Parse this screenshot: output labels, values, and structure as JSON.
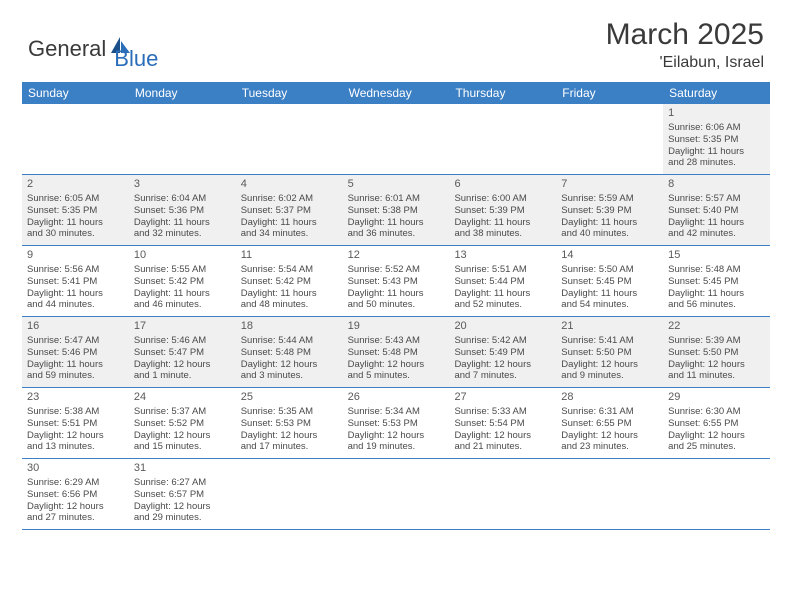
{
  "logo": {
    "text1": "General",
    "text2": "Blue"
  },
  "title": "March 2025",
  "location": "'Eilabun, Israel",
  "colors": {
    "header_bg": "#3b7fc4",
    "header_text": "#ffffff",
    "shaded_bg": "#f0f0f0",
    "border": "#3b7fc4",
    "logo_blue": "#2a6db8",
    "text_gray": "#4a4a4a"
  },
  "weekdays": [
    "Sunday",
    "Monday",
    "Tuesday",
    "Wednesday",
    "Thursday",
    "Friday",
    "Saturday"
  ],
  "weeks": [
    [
      {
        "num": "",
        "lines": []
      },
      {
        "num": "",
        "lines": []
      },
      {
        "num": "",
        "lines": []
      },
      {
        "num": "",
        "lines": []
      },
      {
        "num": "",
        "lines": []
      },
      {
        "num": "",
        "lines": []
      },
      {
        "num": "1",
        "shaded": true,
        "lines": [
          "Sunrise: 6:06 AM",
          "Sunset: 5:35 PM",
          "Daylight: 11 hours",
          "and 28 minutes."
        ]
      }
    ],
    [
      {
        "num": "2",
        "shaded": true,
        "lines": [
          "Sunrise: 6:05 AM",
          "Sunset: 5:35 PM",
          "Daylight: 11 hours",
          "and 30 minutes."
        ]
      },
      {
        "num": "3",
        "shaded": true,
        "lines": [
          "Sunrise: 6:04 AM",
          "Sunset: 5:36 PM",
          "Daylight: 11 hours",
          "and 32 minutes."
        ]
      },
      {
        "num": "4",
        "shaded": true,
        "lines": [
          "Sunrise: 6:02 AM",
          "Sunset: 5:37 PM",
          "Daylight: 11 hours",
          "and 34 minutes."
        ]
      },
      {
        "num": "5",
        "shaded": true,
        "lines": [
          "Sunrise: 6:01 AM",
          "Sunset: 5:38 PM",
          "Daylight: 11 hours",
          "and 36 minutes."
        ]
      },
      {
        "num": "6",
        "shaded": true,
        "lines": [
          "Sunrise: 6:00 AM",
          "Sunset: 5:39 PM",
          "Daylight: 11 hours",
          "and 38 minutes."
        ]
      },
      {
        "num": "7",
        "shaded": true,
        "lines": [
          "Sunrise: 5:59 AM",
          "Sunset: 5:39 PM",
          "Daylight: 11 hours",
          "and 40 minutes."
        ]
      },
      {
        "num": "8",
        "shaded": true,
        "lines": [
          "Sunrise: 5:57 AM",
          "Sunset: 5:40 PM",
          "Daylight: 11 hours",
          "and 42 minutes."
        ]
      }
    ],
    [
      {
        "num": "9",
        "lines": [
          "Sunrise: 5:56 AM",
          "Sunset: 5:41 PM",
          "Daylight: 11 hours",
          "and 44 minutes."
        ]
      },
      {
        "num": "10",
        "lines": [
          "Sunrise: 5:55 AM",
          "Sunset: 5:42 PM",
          "Daylight: 11 hours",
          "and 46 minutes."
        ]
      },
      {
        "num": "11",
        "lines": [
          "Sunrise: 5:54 AM",
          "Sunset: 5:42 PM",
          "Daylight: 11 hours",
          "and 48 minutes."
        ]
      },
      {
        "num": "12",
        "lines": [
          "Sunrise: 5:52 AM",
          "Sunset: 5:43 PM",
          "Daylight: 11 hours",
          "and 50 minutes."
        ]
      },
      {
        "num": "13",
        "lines": [
          "Sunrise: 5:51 AM",
          "Sunset: 5:44 PM",
          "Daylight: 11 hours",
          "and 52 minutes."
        ]
      },
      {
        "num": "14",
        "lines": [
          "Sunrise: 5:50 AM",
          "Sunset: 5:45 PM",
          "Daylight: 11 hours",
          "and 54 minutes."
        ]
      },
      {
        "num": "15",
        "lines": [
          "Sunrise: 5:48 AM",
          "Sunset: 5:45 PM",
          "Daylight: 11 hours",
          "and 56 minutes."
        ]
      }
    ],
    [
      {
        "num": "16",
        "shaded": true,
        "lines": [
          "Sunrise: 5:47 AM",
          "Sunset: 5:46 PM",
          "Daylight: 11 hours",
          "and 59 minutes."
        ]
      },
      {
        "num": "17",
        "shaded": true,
        "lines": [
          "Sunrise: 5:46 AM",
          "Sunset: 5:47 PM",
          "Daylight: 12 hours",
          "and 1 minute."
        ]
      },
      {
        "num": "18",
        "shaded": true,
        "lines": [
          "Sunrise: 5:44 AM",
          "Sunset: 5:48 PM",
          "Daylight: 12 hours",
          "and 3 minutes."
        ]
      },
      {
        "num": "19",
        "shaded": true,
        "lines": [
          "Sunrise: 5:43 AM",
          "Sunset: 5:48 PM",
          "Daylight: 12 hours",
          "and 5 minutes."
        ]
      },
      {
        "num": "20",
        "shaded": true,
        "lines": [
          "Sunrise: 5:42 AM",
          "Sunset: 5:49 PM",
          "Daylight: 12 hours",
          "and 7 minutes."
        ]
      },
      {
        "num": "21",
        "shaded": true,
        "lines": [
          "Sunrise: 5:41 AM",
          "Sunset: 5:50 PM",
          "Daylight: 12 hours",
          "and 9 minutes."
        ]
      },
      {
        "num": "22",
        "shaded": true,
        "lines": [
          "Sunrise: 5:39 AM",
          "Sunset: 5:50 PM",
          "Daylight: 12 hours",
          "and 11 minutes."
        ]
      }
    ],
    [
      {
        "num": "23",
        "lines": [
          "Sunrise: 5:38 AM",
          "Sunset: 5:51 PM",
          "Daylight: 12 hours",
          "and 13 minutes."
        ]
      },
      {
        "num": "24",
        "lines": [
          "Sunrise: 5:37 AM",
          "Sunset: 5:52 PM",
          "Daylight: 12 hours",
          "and 15 minutes."
        ]
      },
      {
        "num": "25",
        "lines": [
          "Sunrise: 5:35 AM",
          "Sunset: 5:53 PM",
          "Daylight: 12 hours",
          "and 17 minutes."
        ]
      },
      {
        "num": "26",
        "lines": [
          "Sunrise: 5:34 AM",
          "Sunset: 5:53 PM",
          "Daylight: 12 hours",
          "and 19 minutes."
        ]
      },
      {
        "num": "27",
        "lines": [
          "Sunrise: 5:33 AM",
          "Sunset: 5:54 PM",
          "Daylight: 12 hours",
          "and 21 minutes."
        ]
      },
      {
        "num": "28",
        "lines": [
          "Sunrise: 6:31 AM",
          "Sunset: 6:55 PM",
          "Daylight: 12 hours",
          "and 23 minutes."
        ]
      },
      {
        "num": "29",
        "lines": [
          "Sunrise: 6:30 AM",
          "Sunset: 6:55 PM",
          "Daylight: 12 hours",
          "and 25 minutes."
        ]
      }
    ],
    [
      {
        "num": "30",
        "lines": [
          "Sunrise: 6:29 AM",
          "Sunset: 6:56 PM",
          "Daylight: 12 hours",
          "and 27 minutes."
        ]
      },
      {
        "num": "31",
        "lines": [
          "Sunrise: 6:27 AM",
          "Sunset: 6:57 PM",
          "Daylight: 12 hours",
          "and 29 minutes."
        ]
      },
      {
        "num": "",
        "lines": []
      },
      {
        "num": "",
        "lines": []
      },
      {
        "num": "",
        "lines": []
      },
      {
        "num": "",
        "lines": []
      },
      {
        "num": "",
        "lines": []
      }
    ]
  ]
}
